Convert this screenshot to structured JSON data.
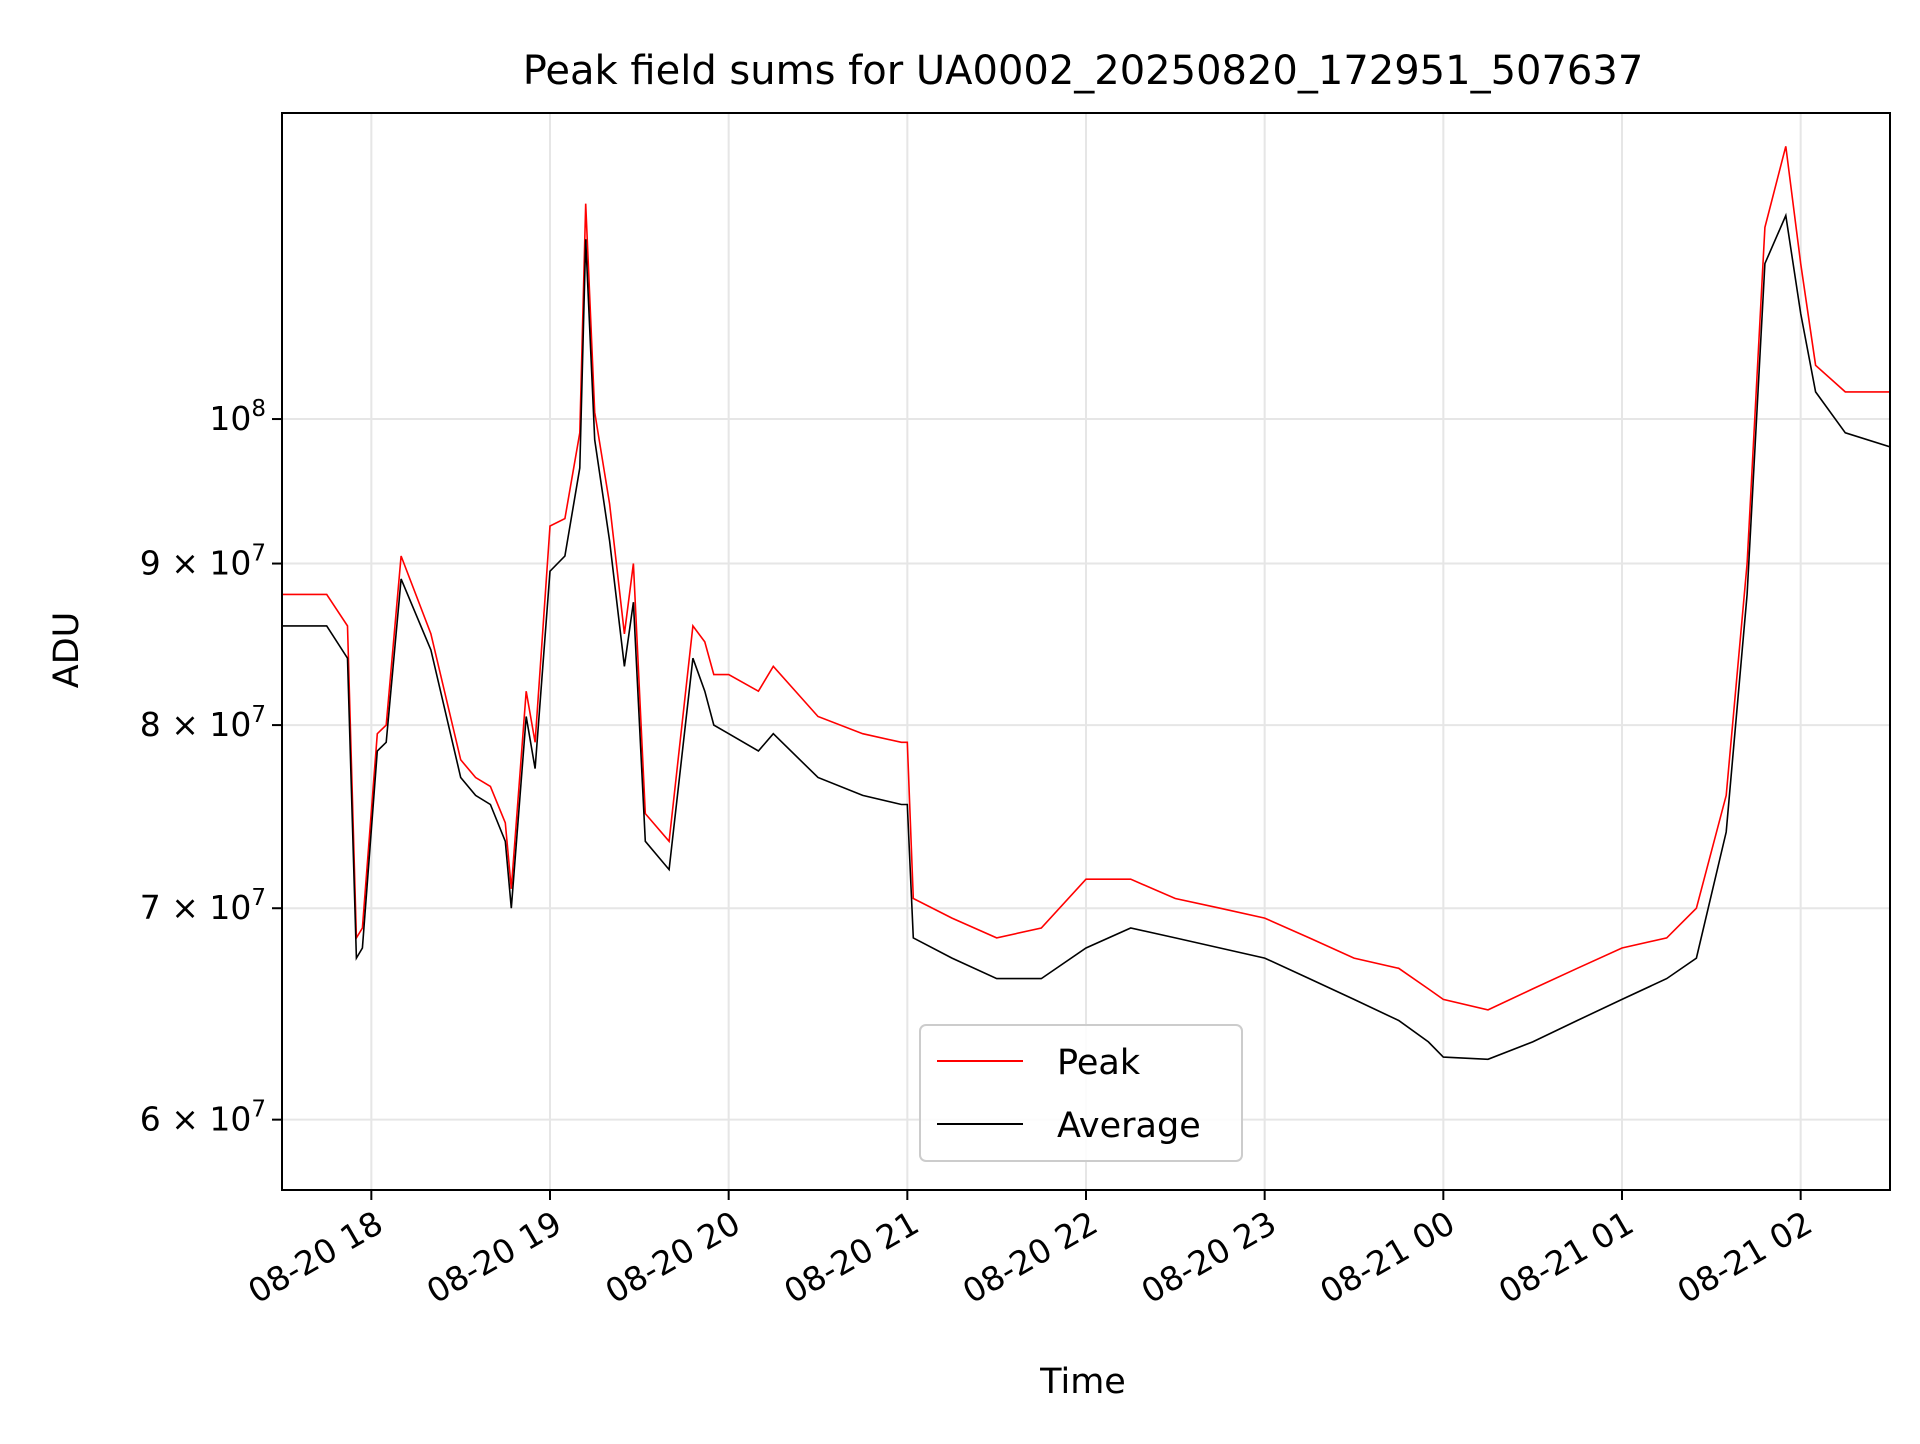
{
  "chart_data": {
    "type": "line",
    "title": "Peak field sums for UA0002_20250820_172951_507637",
    "xlabel": "Time",
    "ylabel": "ADU",
    "yscale": "log",
    "ylim": [
      57000000,
      125000000
    ],
    "xlim": [
      "2025-08-20T17:30",
      "2025-08-21T02:30"
    ],
    "grid": true,
    "legend_position": "lower center",
    "x_ticks": [
      {
        "t": "2025-08-20T18:00",
        "label": "08-20 18"
      },
      {
        "t": "2025-08-20T19:00",
        "label": "08-20 19"
      },
      {
        "t": "2025-08-20T20:00",
        "label": "08-20 20"
      },
      {
        "t": "2025-08-20T21:00",
        "label": "08-20 21"
      },
      {
        "t": "2025-08-20T22:00",
        "label": "08-20 22"
      },
      {
        "t": "2025-08-20T23:00",
        "label": "08-20 23"
      },
      {
        "t": "2025-08-21T00:00",
        "label": "08-21 00"
      },
      {
        "t": "2025-08-21T01:00",
        "label": "08-21 01"
      },
      {
        "t": "2025-08-21T02:00",
        "label": "08-21 02"
      }
    ],
    "y_ticks": [
      {
        "value": 60000000,
        "mantissa": "6",
        "base": "10",
        "exp": "7"
      },
      {
        "value": 70000000,
        "mantissa": "7",
        "base": "10",
        "exp": "7"
      },
      {
        "value": 80000000,
        "mantissa": "8",
        "base": "10",
        "exp": "7"
      },
      {
        "value": 90000000,
        "mantissa": "9",
        "base": "10",
        "exp": "7"
      },
      {
        "value": 100000000,
        "mantissa": "",
        "base": "10",
        "exp": "8"
      }
    ],
    "series": [
      {
        "name": "Peak",
        "color": "#ff0000",
        "x": [
          "2025-08-20T17:30",
          "2025-08-20T17:45",
          "2025-08-20T17:52",
          "2025-08-20T17:55",
          "2025-08-20T17:57",
          "2025-08-20T18:02",
          "2025-08-20T18:05",
          "2025-08-20T18:10",
          "2025-08-20T18:20",
          "2025-08-20T18:30",
          "2025-08-20T18:35",
          "2025-08-20T18:40",
          "2025-08-20T18:45",
          "2025-08-20T18:47",
          "2025-08-20T18:52",
          "2025-08-20T18:55",
          "2025-08-20T19:00",
          "2025-08-20T19:05",
          "2025-08-20T19:10",
          "2025-08-20T19:12",
          "2025-08-20T19:15",
          "2025-08-20T19:20",
          "2025-08-20T19:25",
          "2025-08-20T19:28",
          "2025-08-20T19:32",
          "2025-08-20T19:40",
          "2025-08-20T19:48",
          "2025-08-20T19:52",
          "2025-08-20T19:55",
          "2025-08-20T20:00",
          "2025-08-20T20:10",
          "2025-08-20T20:15",
          "2025-08-20T20:30",
          "2025-08-20T20:45",
          "2025-08-20T20:58",
          "2025-08-20T21:00",
          "2025-08-20T21:02",
          "2025-08-20T21:15",
          "2025-08-20T21:30",
          "2025-08-20T21:45",
          "2025-08-20T22:00",
          "2025-08-20T22:15",
          "2025-08-20T22:30",
          "2025-08-20T22:45",
          "2025-08-20T23:00",
          "2025-08-20T23:15",
          "2025-08-20T23:30",
          "2025-08-20T23:45",
          "2025-08-20T23:55",
          "2025-08-21T00:00",
          "2025-08-21T00:15",
          "2025-08-21T00:30",
          "2025-08-21T00:45",
          "2025-08-21T01:00",
          "2025-08-21T01:15",
          "2025-08-21T01:25",
          "2025-08-21T01:35",
          "2025-08-21T01:42",
          "2025-08-21T01:48",
          "2025-08-21T01:55",
          "2025-08-21T02:00",
          "2025-08-21T02:05",
          "2025-08-21T02:15",
          "2025-08-21T02:30"
        ],
        "y": [
          88000000,
          88000000,
          86000000,
          68500000,
          69000000,
          79500000,
          80000000,
          90500000,
          85500000,
          78000000,
          77000000,
          76500000,
          74500000,
          71000000,
          82000000,
          79000000,
          92500000,
          93000000,
          99000000,
          117000000,
          100500000,
          94000000,
          85500000,
          90000000,
          75000000,
          73500000,
          86000000,
          85000000,
          83000000,
          83000000,
          82000000,
          83500000,
          80500000,
          79500000,
          79000000,
          79000000,
          70500000,
          69500000,
          68500000,
          69000000,
          71500000,
          71500000,
          70500000,
          70000000,
          69500000,
          68500000,
          67500000,
          67000000,
          66000000,
          65500000,
          65000000,
          66000000,
          67000000,
          68000000,
          68500000,
          70000000,
          76000000,
          90000000,
          115000000,
          122000000,
          112000000,
          104000000,
          102000000,
          102000000
        ]
      },
      {
        "name": "Average",
        "color": "#000000",
        "x": [
          "2025-08-20T17:30",
          "2025-08-20T17:45",
          "2025-08-20T17:52",
          "2025-08-20T17:55",
          "2025-08-20T17:57",
          "2025-08-20T18:02",
          "2025-08-20T18:05",
          "2025-08-20T18:10",
          "2025-08-20T18:20",
          "2025-08-20T18:30",
          "2025-08-20T18:35",
          "2025-08-20T18:40",
          "2025-08-20T18:45",
          "2025-08-20T18:47",
          "2025-08-20T18:52",
          "2025-08-20T18:55",
          "2025-08-20T19:00",
          "2025-08-20T19:05",
          "2025-08-20T19:10",
          "2025-08-20T19:12",
          "2025-08-20T19:15",
          "2025-08-20T19:20",
          "2025-08-20T19:25",
          "2025-08-20T19:28",
          "2025-08-20T19:32",
          "2025-08-20T19:40",
          "2025-08-20T19:48",
          "2025-08-20T19:52",
          "2025-08-20T19:55",
          "2025-08-20T20:00",
          "2025-08-20T20:10",
          "2025-08-20T20:15",
          "2025-08-20T20:30",
          "2025-08-20T20:45",
          "2025-08-20T20:58",
          "2025-08-20T21:00",
          "2025-08-20T21:02",
          "2025-08-20T21:15",
          "2025-08-20T21:30",
          "2025-08-20T21:45",
          "2025-08-20T22:00",
          "2025-08-20T22:15",
          "2025-08-20T22:30",
          "2025-08-20T22:45",
          "2025-08-20T23:00",
          "2025-08-20T23:15",
          "2025-08-20T23:30",
          "2025-08-20T23:45",
          "2025-08-20T23:55",
          "2025-08-21T00:00",
          "2025-08-21T00:15",
          "2025-08-21T00:30",
          "2025-08-21T00:45",
          "2025-08-21T01:00",
          "2025-08-21T01:15",
          "2025-08-21T01:25",
          "2025-08-21T01:35",
          "2025-08-21T01:42",
          "2025-08-21T01:48",
          "2025-08-21T01:55",
          "2025-08-21T02:00",
          "2025-08-21T02:05",
          "2025-08-21T02:15",
          "2025-08-21T02:30"
        ],
        "y": [
          86000000,
          86000000,
          84000000,
          67500000,
          68000000,
          78500000,
          79000000,
          89000000,
          84500000,
          77000000,
          76000000,
          75500000,
          73500000,
          70000000,
          80500000,
          77500000,
          89500000,
          90500000,
          96500000,
          114000000,
          98500000,
          91500000,
          83500000,
          87500000,
          73500000,
          72000000,
          84000000,
          82000000,
          80000000,
          79500000,
          78500000,
          79500000,
          77000000,
          76000000,
          75500000,
          75500000,
          68500000,
          67500000,
          66500000,
          66500000,
          68000000,
          69000000,
          68500000,
          68000000,
          67500000,
          66500000,
          65500000,
          64500000,
          63500000,
          62800000,
          62700000,
          63500000,
          64500000,
          65500000,
          66500000,
          67500000,
          74000000,
          88000000,
          112000000,
          116000000,
          108000000,
          102000000,
          99000000,
          98000000
        ]
      }
    ]
  }
}
